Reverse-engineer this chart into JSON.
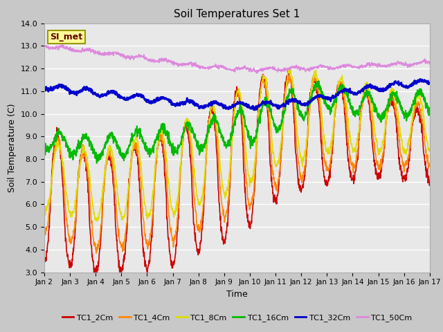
{
  "title": "Soil Temperatures Set 1",
  "xlabel": "Time",
  "ylabel": "Soil Temperature (C)",
  "ylim": [
    3.0,
    14.0
  ],
  "yticks": [
    3.0,
    4.0,
    5.0,
    6.0,
    7.0,
    8.0,
    9.0,
    10.0,
    11.0,
    12.0,
    13.0,
    14.0
  ],
  "fig_bg": "#c8c8c8",
  "plot_bg": "#e8e8e8",
  "series": [
    {
      "label": "TC1_2Cm",
      "color": "#cc0000",
      "lw": 1.2
    },
    {
      "label": "TC1_4Cm",
      "color": "#ff8800",
      "lw": 1.2
    },
    {
      "label": "TC1_8Cm",
      "color": "#dddd00",
      "lw": 1.2
    },
    {
      "label": "TC1_16Cm",
      "color": "#00bb00",
      "lw": 1.5
    },
    {
      "label": "TC1_32Cm",
      "color": "#0000cc",
      "lw": 2.0
    },
    {
      "label": "TC1_50Cm",
      "color": "#dd88dd",
      "lw": 1.2
    }
  ],
  "xtick_labels": [
    "Jan 2",
    "Jan 3",
    "Jan 4",
    "Jan 5",
    "Jan 6",
    "Jan 7",
    "Jan 8",
    "Jan 9",
    "Jan 10",
    "Jan 11",
    "Jan 12",
    "Jan 13",
    "Jan 14",
    "Jan 15",
    "Jan 16",
    "Jan 17"
  ],
  "annotation_text": "SI_met",
  "annotation_bg": "#ffff99",
  "annotation_border": "#999900"
}
